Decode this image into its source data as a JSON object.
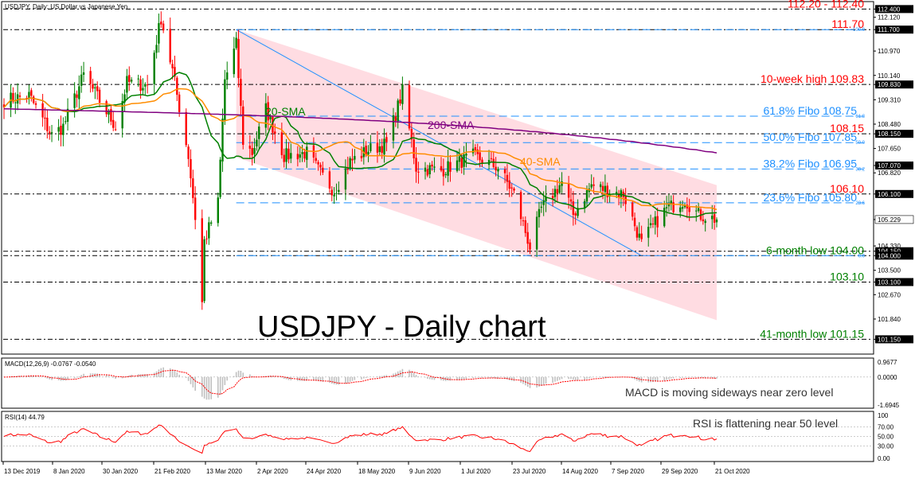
{
  "header": {
    "title": "USDJPY, Daily:  US Dollar vs Japanese Yen"
  },
  "colors": {
    "bull": "#008000",
    "bear": "#ff0000",
    "sma20": "#008000",
    "sma40": "#ff8c00",
    "sma200": "#800080",
    "fibo": "#1E90FF",
    "channel": "#ffc0cb",
    "level_red": "#ff0000",
    "level_green": "#008000",
    "macd_hist": "#c0c0c0",
    "macd_signal": "#ff0000",
    "rsi": "#ff0000"
  },
  "chart_data": {
    "type": "candlestick",
    "title": "USDJPY - Daily chart",
    "symbol": "USDJPY",
    "timeframe": "Daily",
    "ylim": [
      100.7,
      112.6
    ],
    "price_ticks": [
      "112.400",
      "112.120",
      "111.700",
      "110.970",
      "110.140",
      "109.830",
      "109.310",
      "108.480",
      "108.150",
      "107.650",
      "107.070",
      "106.820",
      "106.100",
      "105.229",
      "104.330",
      "104.150",
      "104.000",
      "103.500",
      "103.100",
      "102.670",
      "101.840",
      "101.150"
    ],
    "x_labels": [
      "13 Dec 2019",
      "8 Jan 2020",
      "30 Jan 2020",
      "21 Feb 2020",
      "13 Mar 2020",
      "2 Apr 2020",
      "24 Apr 2020",
      "18 May 2020",
      "9 Jun 2020",
      "1 Jul 2020",
      "23 Jul 2020",
      "14 Aug 2020",
      "7 Sep 2020",
      "29 Sep 2020",
      "21 Oct 2020"
    ],
    "anchors": [
      {
        "date": "2019-12-13",
        "v": 109.3
      },
      {
        "date": "2019-12-24",
        "v": 109.45
      },
      {
        "date": "2020-01-03",
        "v": 108.1
      },
      {
        "date": "2020-01-08",
        "v": 108.4
      },
      {
        "date": "2020-01-17",
        "v": 110.15
      },
      {
        "date": "2020-01-23",
        "v": 109.4
      },
      {
        "date": "2020-01-31",
        "v": 108.4
      },
      {
        "date": "2020-02-05",
        "v": 109.9
      },
      {
        "date": "2020-02-14",
        "v": 109.8
      },
      {
        "date": "2020-02-20",
        "v": 112.1
      },
      {
        "date": "2020-02-25",
        "v": 110.3
      },
      {
        "date": "2020-03-03",
        "v": 107.4
      },
      {
        "date": "2020-03-06",
        "v": 105.3
      },
      {
        "date": "2020-03-09",
        "v": 102.4
      },
      {
        "date": "2020-03-10",
        "v": 104.5
      },
      {
        "date": "2020-03-16",
        "v": 105.8
      },
      {
        "date": "2020-03-19",
        "v": 110.0
      },
      {
        "date": "2020-03-24",
        "v": 111.2
      },
      {
        "date": "2020-03-27",
        "v": 107.9
      },
      {
        "date": "2020-03-31",
        "v": 107.5
      },
      {
        "date": "2020-04-06",
        "v": 109.0
      },
      {
        "date": "2020-04-14",
        "v": 107.4
      },
      {
        "date": "2020-04-24",
        "v": 107.5
      },
      {
        "date": "2020-04-30",
        "v": 106.8
      },
      {
        "date": "2020-05-06",
        "v": 106.2
      },
      {
        "date": "2020-05-13",
        "v": 107.2
      },
      {
        "date": "2020-05-21",
        "v": 107.6
      },
      {
        "date": "2020-05-29",
        "v": 107.8
      },
      {
        "date": "2020-06-05",
        "v": 109.6
      },
      {
        "date": "2020-06-11",
        "v": 107.0
      },
      {
        "date": "2020-06-22",
        "v": 106.9
      },
      {
        "date": "2020-07-06",
        "v": 107.4
      },
      {
        "date": "2020-07-17",
        "v": 107.0
      },
      {
        "date": "2020-07-24",
        "v": 106.1
      },
      {
        "date": "2020-07-31",
        "v": 104.3
      },
      {
        "date": "2020-08-05",
        "v": 105.6
      },
      {
        "date": "2020-08-14",
        "v": 106.5
      },
      {
        "date": "2020-08-19",
        "v": 105.4
      },
      {
        "date": "2020-08-27",
        "v": 106.4
      },
      {
        "date": "2020-09-04",
        "v": 106.2
      },
      {
        "date": "2020-09-10",
        "v": 106.1
      },
      {
        "date": "2020-09-18",
        "v": 104.4
      },
      {
        "date": "2020-09-22",
        "v": 104.9
      },
      {
        "date": "2020-09-29",
        "v": 105.6
      },
      {
        "date": "2020-10-07",
        "v": 105.9
      },
      {
        "date": "2020-10-13",
        "v": 105.4
      },
      {
        "date": "2020-10-21",
        "v": 105.229
      }
    ],
    "levels": [
      {
        "price": 112.4,
        "label": "112.20 - 112.40",
        "type": "resistance"
      },
      {
        "price": 111.7,
        "label": "111.70",
        "type": "resistance"
      },
      {
        "price": 109.83,
        "label": "10-week high 109.83",
        "type": "resistance"
      },
      {
        "price": 108.15,
        "label": "108.15",
        "type": "resistance"
      },
      {
        "price": 106.1,
        "label": "106.10",
        "type": "resistance"
      },
      {
        "price": 104.15,
        "label": "",
        "type": "support"
      },
      {
        "price": 104.0,
        "label": "6-month low 104.00",
        "type": "support"
      },
      {
        "price": 103.1,
        "label": "103.10",
        "type": "support"
      },
      {
        "price": 101.15,
        "label": "41-month low 101.15",
        "type": "support"
      }
    ],
    "fibo": [
      {
        "pct": "100.0",
        "price": 111.7,
        "label": ""
      },
      {
        "pct": "61.8",
        "price": 108.75,
        "label": "61.8% Fibo 108.75"
      },
      {
        "pct": "50.0",
        "price": 107.85,
        "label": "50.0% Fibo 107.85"
      },
      {
        "pct": "38.2",
        "price": 106.95,
        "label": "38.2% Fibo 106.95"
      },
      {
        "pct": "23.6",
        "price": 105.8,
        "label": "23.6% Fibo 105.80"
      },
      {
        "pct": "0.0",
        "price": 104.0,
        "label": ""
      }
    ],
    "sma_labels": {
      "sma20": "20-SMA",
      "sma40": "40-SMA",
      "sma200": "200-SMA"
    },
    "channel": {
      "upper": [
        [
          "2020-03-24",
          111.7
        ],
        [
          "2020-10-21",
          106.4
        ]
      ],
      "lower": [
        [
          "2020-03-24",
          107.35
        ],
        [
          "2020-10-21",
          101.8
        ]
      ]
    },
    "fibo_line": [
      [
        "2020-03-24",
        111.7
      ],
      [
        "2020-09-18",
        104.0
      ]
    ],
    "tag_prices": [
      "112.400",
      "111.700",
      "109.830",
      "108.150",
      "107.070",
      "106.100",
      "105.229",
      "104.150",
      "104.000",
      "103.100",
      "101.150"
    ],
    "current_price": "105.229",
    "macd": {
      "title": "MACD(12,26,9) -0.0767 -0.0540",
      "ticks": [
        "0.9677",
        "0.0000",
        "-1.6945"
      ],
      "ylim": [
        -1.7,
        1.0
      ],
      "note": "MACD is moving sideways near zero level"
    },
    "rsi": {
      "title": "RSI(14) 44.79",
      "ticks": [
        "100",
        "70.00",
        "50.00",
        "30.00",
        "0.00"
      ],
      "ylim": [
        0,
        100
      ],
      "note": "RSI is flattening near 50 level",
      "value": 44.79
    }
  }
}
